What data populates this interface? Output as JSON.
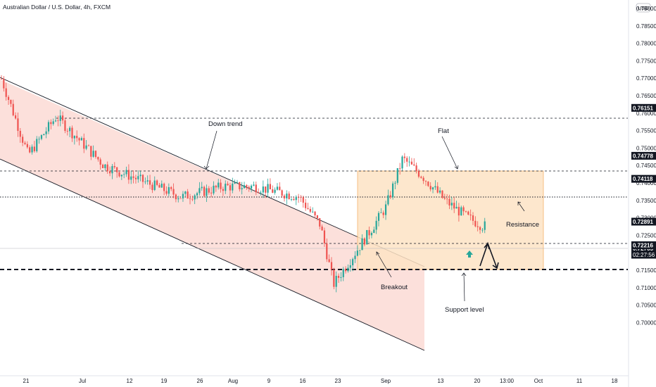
{
  "header": {
    "symbol_title": "Australian Dollar / U.S. Dollar, 4h, FXCM"
  },
  "currency_badge": "USD",
  "countdown": "02:27:56",
  "colors": {
    "up": "#26a69a",
    "down": "#ef5350",
    "channel_fill": "#fbd5cf",
    "flat_fill": "#fde3c4",
    "flat_stroke": "#f6b26b",
    "tag_bg": "#131722",
    "price_tag_bg": "#131722",
    "arrow_up": "#26a69a"
  },
  "chart_data": {
    "type": "candlestick",
    "title": "",
    "ylim": [
      0.6975,
      0.7925
    ],
    "y_ticks": [
      "0.79000",
      "0.78500",
      "0.78000",
      "0.77500",
      "0.77000",
      "0.76500",
      "0.76000",
      "0.75500",
      "0.75000",
      "0.74500",
      "0.74000",
      "0.73500",
      "0.73000",
      "0.72500",
      "0.72000",
      "0.71500",
      "0.71000",
      "0.70500",
      "0.70000"
    ],
    "x_ticks": [
      "21",
      "Jul",
      "12",
      "19",
      "26",
      "Aug",
      "9",
      "16",
      "23",
      "Sep",
      "13",
      "20",
      "13:00",
      "Oct",
      "11",
      "18"
    ],
    "series": [
      {
        "x": [
          "Jun 21",
          "Jun 28",
          "Jul 5",
          "Jul 12",
          "Jul 19",
          "Jul 26",
          "Aug 2",
          "Aug 9",
          "Aug 16",
          "Aug 20",
          "Aug 23",
          "Aug 30",
          "Sep 3",
          "Sep 6",
          "Sep 13",
          "Sep 17",
          "Sep 20"
        ],
        "close": [
          0.771,
          0.748,
          0.759,
          0.745,
          0.736,
          0.739,
          0.739,
          0.736,
          0.728,
          0.711,
          0.726,
          0.733,
          0.747,
          0.742,
          0.735,
          0.73,
          0.7277
        ]
      }
    ],
    "price_tags": [
      {
        "label": "0.76151",
        "value": 0.76151
      },
      {
        "label": "0.74778",
        "value": 0.74778
      },
      {
        "label": "0.74118",
        "value": 0.74118
      },
      {
        "label": "0.72891",
        "value": 0.72891
      },
      {
        "label": "0.72765",
        "value": 0.72765,
        "current": true
      },
      {
        "label": "0.72216",
        "value": 0.72216
      }
    ],
    "annotations": [
      {
        "text": "Down trend"
      },
      {
        "text": "Flat"
      },
      {
        "text": "Resistance"
      },
      {
        "text": "Breakout"
      },
      {
        "text": "Support level"
      }
    ]
  }
}
